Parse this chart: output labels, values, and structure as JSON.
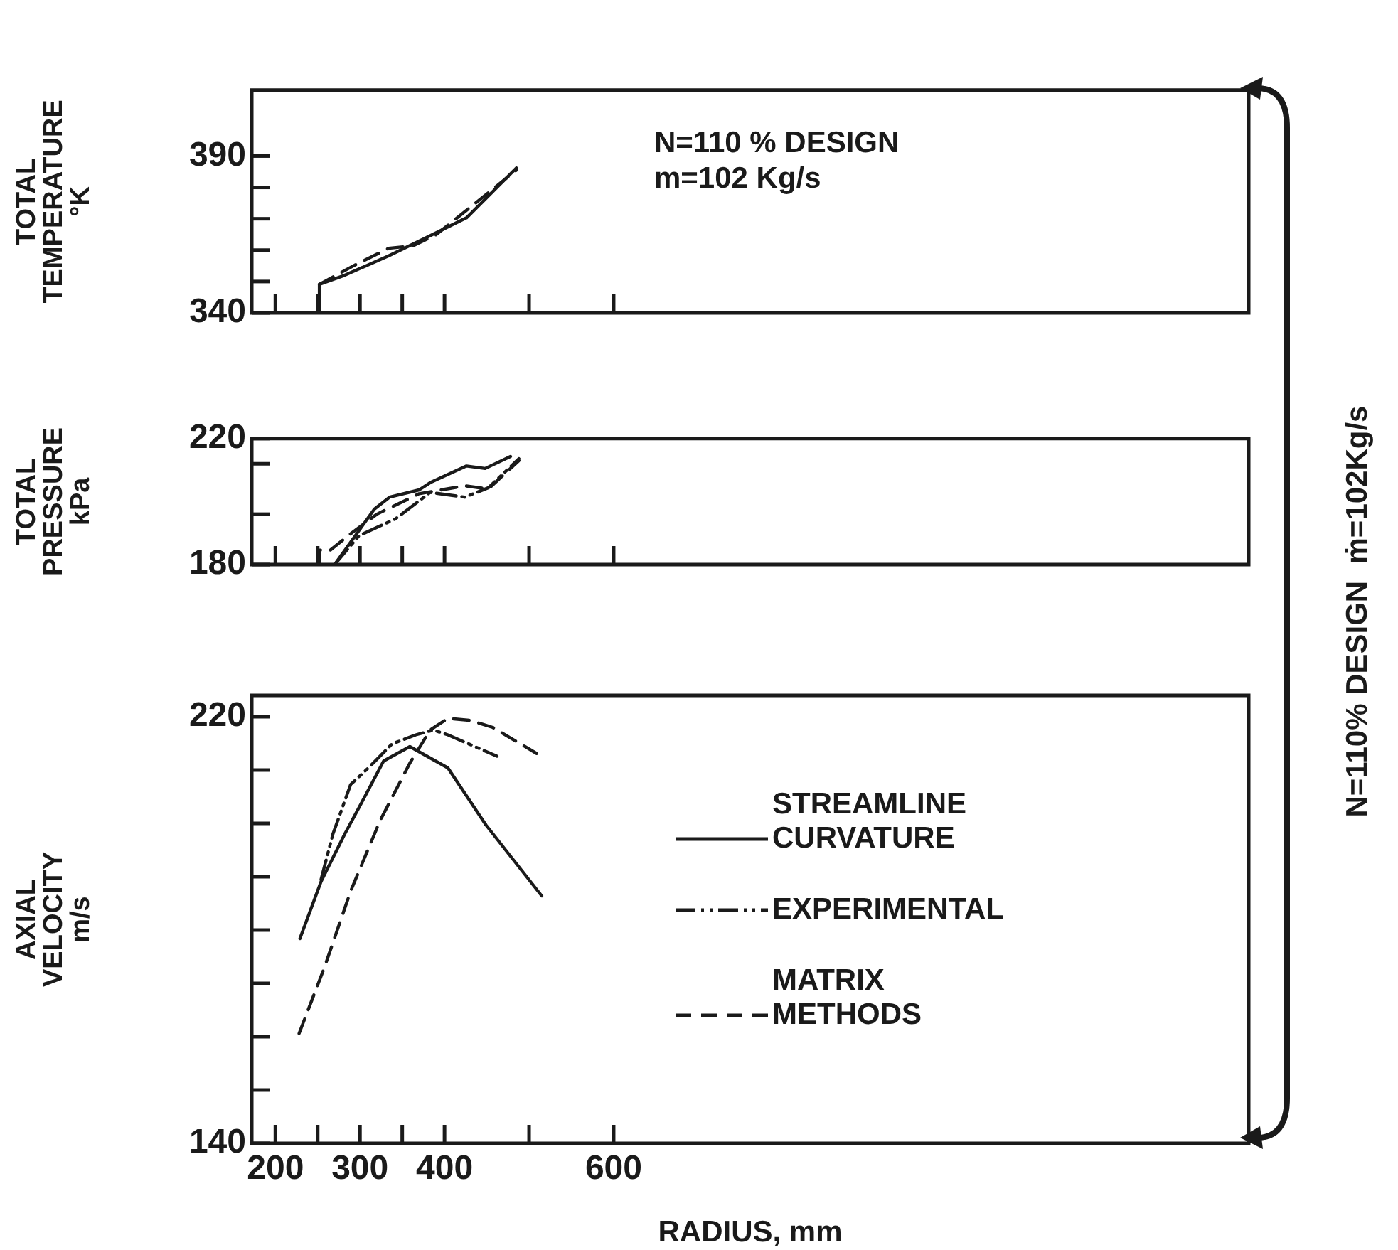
{
  "chart_data": [
    {
      "type": "line",
      "ylabel": "TOTAL\nTEMPERATURE\n°K",
      "xlim": [
        172,
        1351
      ],
      "xticks": [
        200,
        250,
        300,
        350,
        400,
        500,
        600
      ],
      "ylim": [
        340,
        411
      ],
      "yticks": [
        340,
        {
          "value": 350,
          "label": null
        },
        {
          "value": 360,
          "label": null
        },
        {
          "value": 370,
          "label": null
        },
        {
          "value": 380,
          "label": null
        },
        390
      ],
      "tick_labels": "y",
      "annotations": [
        "N=110 % DESIGN",
        "m=102 Kg/s"
      ],
      "series": [
        {
          "color": "#1a1a1a",
          "line_style": "solid",
          "x": [
            252,
            252,
            282,
            334,
            380,
            426,
            485
          ],
          "values": [
            340,
            349.1,
            352,
            358.2,
            364.2,
            370.3,
            386.2
          ]
        },
        {
          "color": "#1a1a1a",
          "line_style": "dashed",
          "x": [
            252,
            293,
            334,
            363,
            390,
            485
          ],
          "values": [
            349.1,
            355.1,
            360.6,
            361.4,
            364.9,
            385.5
          ]
        }
      ]
    },
    {
      "type": "line",
      "ylabel": "TOTAL\nPRESSURE\nkPa",
      "xlim": [
        172,
        1351
      ],
      "xticks": [
        200,
        250,
        300,
        350,
        400,
        500,
        600
      ],
      "ylim": [
        180,
        220
      ],
      "yticks": [
        180,
        {
          "value": 196,
          "label": null
        },
        {
          "value": 212,
          "label": null
        },
        220
      ],
      "tick_labels": "y",
      "series": [
        {
          "color": "#1a1a1a",
          "line_style": "solid",
          "x": [
            270,
            317,
            335,
            370,
            383,
            426,
            448,
            478
          ],
          "values": [
            180,
            197.6,
            201.4,
            203.7,
            206,
            211.3,
            210.5,
            214.3
          ]
        },
        {
          "color": "#1a1a1a",
          "line_style": "dashdot",
          "x": [
            270,
            299,
            342,
            383,
            424,
            452,
            488
          ],
          "values": [
            180,
            189.2,
            194.5,
            202.9,
            201.4,
            204.4,
            213.6
          ]
        },
        {
          "color": "#1a1a1a",
          "line_style": "dashed",
          "x": [
            252,
            252,
            265,
            290,
            320,
            370,
            424,
            452,
            488
          ],
          "values": [
            180,
            184.6,
            184.6,
            190,
            196,
            202.5,
            205,
            204,
            213
          ]
        }
      ]
    },
    {
      "type": "line",
      "ylabel": "AXIAL\nVELOCITY\nm/s",
      "xlabel": "RADIUS, mm",
      "xlim": [
        172,
        1351
      ],
      "xticks": [
        200,
        {
          "value": 250,
          "label": null
        },
        300,
        {
          "value": 350,
          "label": null
        },
        400,
        {
          "value": 500,
          "label": null
        },
        600
      ],
      "ylim": [
        140,
        224
      ],
      "yticks": [
        140,
        {
          "value": 150,
          "label": null
        },
        {
          "value": 160,
          "label": null
        },
        {
          "value": 170,
          "label": null
        },
        {
          "value": 180,
          "label": null
        },
        {
          "value": 190,
          "label": null
        },
        {
          "value": 200,
          "label": null
        },
        {
          "value": 210,
          "label": null
        },
        220
      ],
      "legend": "right",
      "annotations": [
        "N=110% DESIGN  ṁ=102Kg/s"
      ],
      "series": [
        {
          "name": "STREAMLINE CURVATURE",
          "color": "#1a1a1a",
          "line_style": "solid",
          "x": [
            229,
            254,
            282,
            303,
            328,
            359,
            404,
            449,
            515
          ],
          "values": [
            178.4,
            189.1,
            198,
            204.2,
            211.7,
            214.4,
            210.4,
            199.7,
            186.4
          ]
        },
        {
          "name": "EXPERIMENTAL",
          "color": "#1a1a1a",
          "line_style": "dashdot",
          "x": [
            254,
            268,
            289,
            310,
            338,
            366,
            387,
            404,
            462
          ],
          "values": [
            189.5,
            198,
            207.3,
            210.4,
            214.9,
            216.6,
            217.5,
            216.6,
            212.6
          ]
        },
        {
          "name": "MATRIX METHODS",
          "color": "#1a1a1a",
          "line_style": "dashed",
          "x": [
            228,
            258,
            289,
            324,
            359,
            383,
            404,
            431,
            457,
            509
          ],
          "values": [
            160.6,
            173,
            187.3,
            200.6,
            211.3,
            217.5,
            219.7,
            219.3,
            218,
            213.1
          ]
        }
      ]
    }
  ]
}
